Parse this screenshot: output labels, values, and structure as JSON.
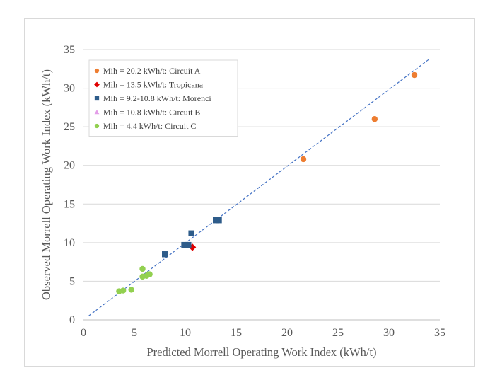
{
  "chart_data": {
    "type": "scatter",
    "xlabel": "Predicted Morrell Operating Work Index (kWh/t)",
    "ylabel": "Observed Morrell Operating Work Index (kWh/t)",
    "xlim": [
      0,
      35
    ],
    "ylim": [
      0,
      35
    ],
    "x_ticks": [
      "0",
      "5",
      "10",
      "15",
      "20",
      "25",
      "30",
      "35"
    ],
    "y_ticks": [
      "0",
      "5",
      "10",
      "15",
      "20",
      "25",
      "30",
      "35"
    ],
    "grid": "horizontal",
    "legend_position": "top-left",
    "series": [
      {
        "name": "Mih = 20.2 kWh/t: Circuit A",
        "marker": "circle",
        "color": "#ED7D31",
        "points": [
          [
            21.6,
            20.8
          ],
          [
            28.6,
            26.0
          ],
          [
            32.5,
            31.7
          ]
        ]
      },
      {
        "name": "Mih = 13.5 kWh/t: Tropicana",
        "marker": "diamond",
        "color": "#E00000",
        "points": [
          [
            10.7,
            9.4
          ]
        ]
      },
      {
        "name": "Mih = 9.2-10.8 kWh/t: Morenci",
        "marker": "square",
        "color": "#2E5C8A",
        "points": [
          [
            8.0,
            8.5
          ],
          [
            9.9,
            9.7
          ],
          [
            10.3,
            9.7
          ],
          [
            10.6,
            11.2
          ],
          [
            13.0,
            12.9
          ],
          [
            13.3,
            12.9
          ]
        ]
      },
      {
        "name": "Mih = 10.8 kWh/t: Circuit B",
        "marker": "triangle",
        "color": "#E39EE8",
        "points": []
      },
      {
        "name": "Mih = 4.4 kWh/t: Circuit C",
        "marker": "circle",
        "color": "#92D050",
        "points": [
          [
            3.5,
            3.7
          ],
          [
            3.9,
            3.8
          ],
          [
            4.7,
            3.9
          ],
          [
            5.8,
            6.6
          ],
          [
            5.8,
            5.6
          ],
          [
            6.2,
            5.7
          ],
          [
            6.4,
            5.9
          ],
          [
            6.5,
            5.9
          ]
        ]
      }
    ],
    "trendline": {
      "style": "dashed",
      "color": "#4472C4",
      "from": [
        0.5,
        0.5
      ],
      "to": [
        34.0,
        33.8
      ]
    }
  }
}
